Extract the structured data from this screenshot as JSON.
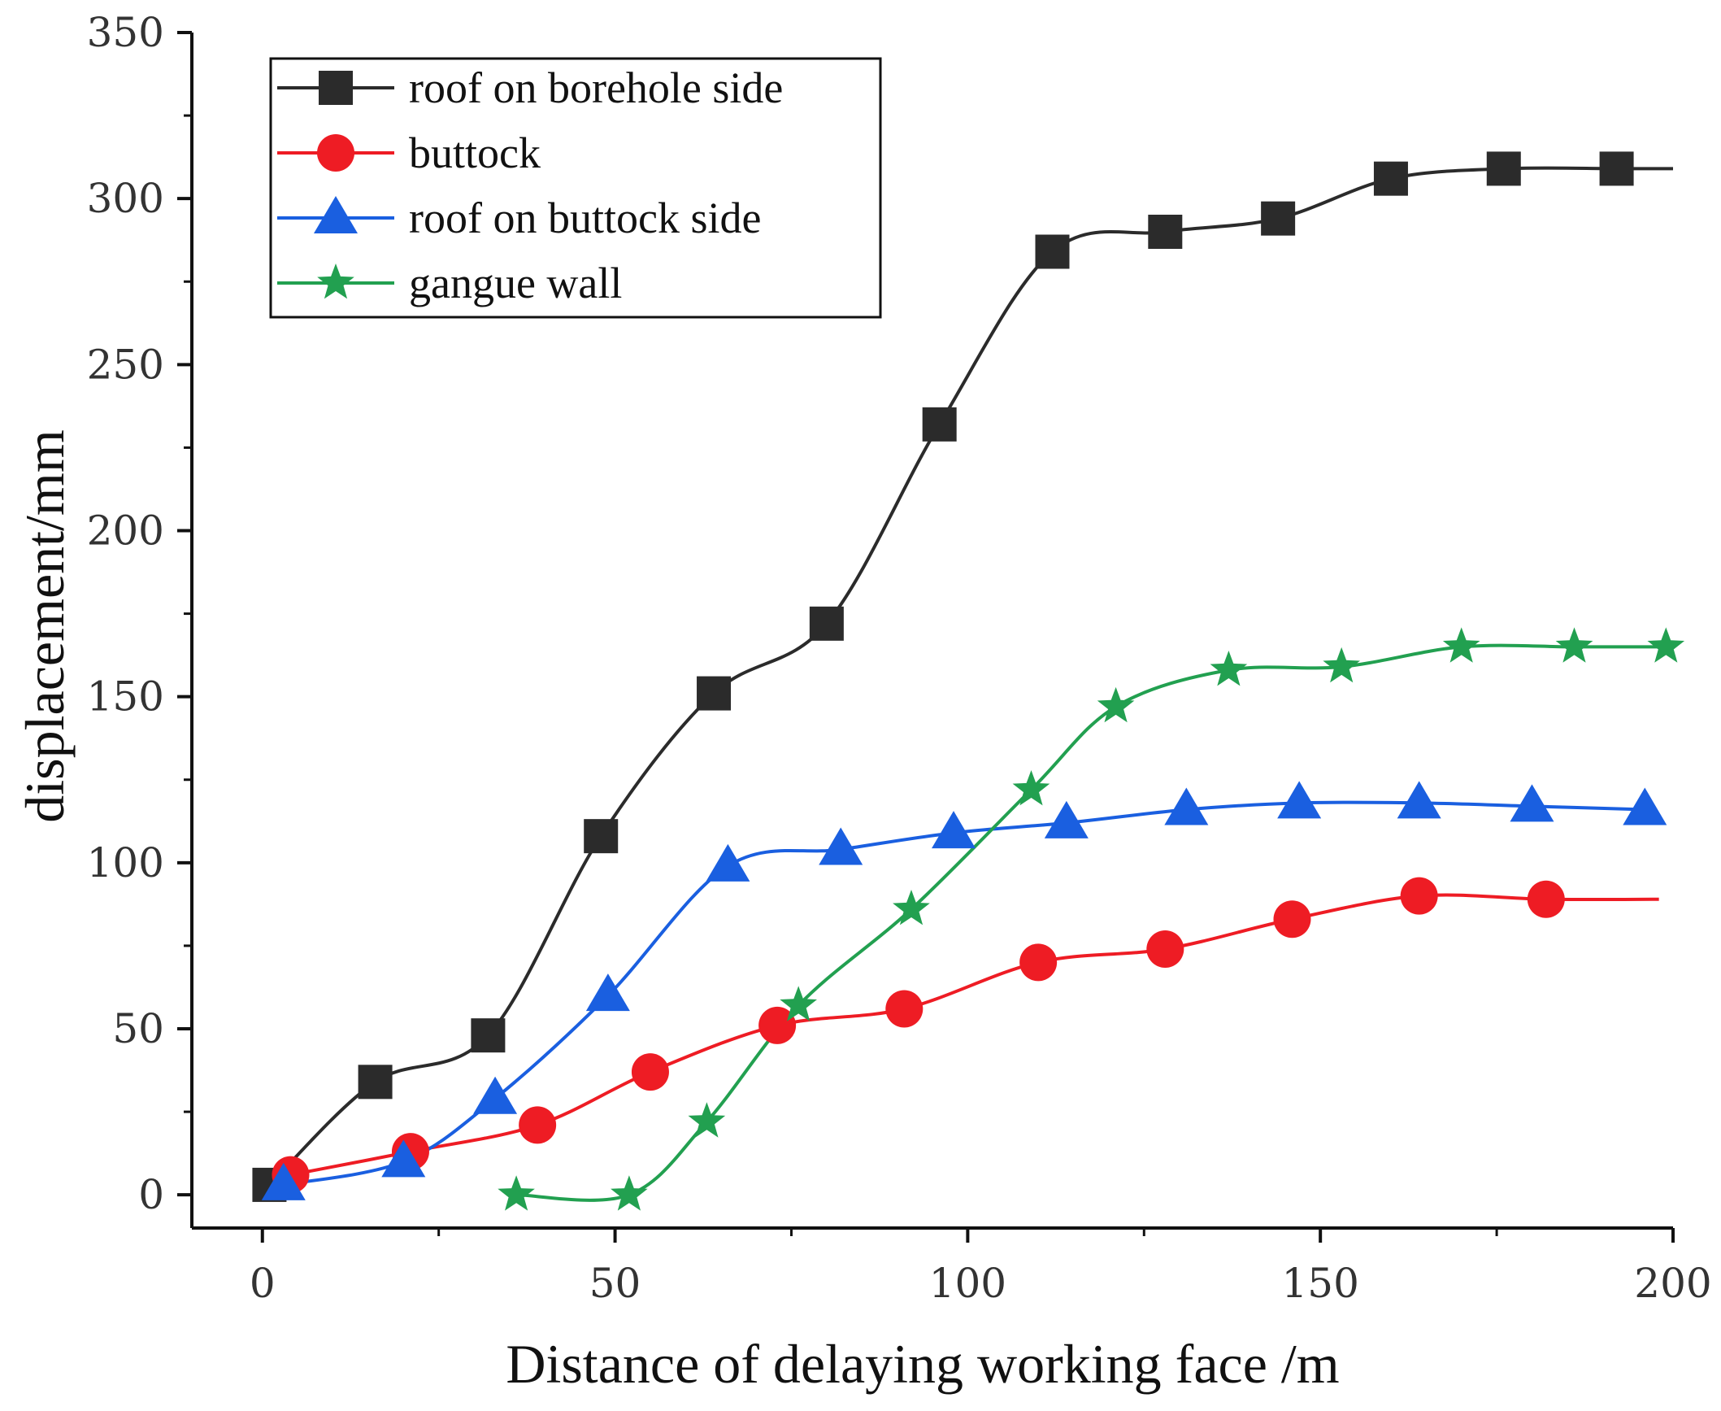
{
  "chart_data": {
    "type": "line",
    "title": "",
    "xlabel": "Distance of delaying working face /m",
    "ylabel": "displacement/mm",
    "xlim": [
      -10,
      200
    ],
    "ylim": [
      -10,
      350
    ],
    "xticks": [
      0,
      50,
      100,
      150,
      200
    ],
    "yticks": [
      0,
      50,
      100,
      150,
      200,
      250,
      300,
      350
    ],
    "grid": false,
    "legend_position": "top-left",
    "series": [
      {
        "name": "roof on borehole side",
        "color": "#2b2b2b",
        "marker": "square",
        "x": [
          1,
          16,
          32,
          48,
          64,
          80,
          96,
          112,
          128,
          144,
          160,
          176,
          192
        ],
        "y": [
          3,
          34,
          48,
          108,
          151,
          172,
          232,
          284,
          290,
          294,
          306,
          309,
          309
        ],
        "line_end": [
          200,
          309
        ]
      },
      {
        "name": "buttock",
        "color": "#ee1c24",
        "marker": "circle",
        "x": [
          4,
          21,
          39,
          55,
          73,
          91,
          110,
          128,
          146,
          164,
          182
        ],
        "y": [
          6,
          13,
          21,
          37,
          51,
          56,
          70,
          74,
          83,
          90,
          89
        ],
        "line_end": [
          198,
          89
        ]
      },
      {
        "name": "roof on buttock side",
        "color": "#1a5fe0",
        "marker": "triangle",
        "x": [
          3,
          20,
          33,
          49,
          66,
          82,
          98,
          114,
          131,
          147,
          164,
          180,
          196
        ],
        "y": [
          3,
          10,
          29,
          60,
          99,
          104,
          109,
          112,
          116,
          118,
          118,
          117,
          116
        ],
        "line_end": [
          196,
          116
        ]
      },
      {
        "name": "gangue wall",
        "color": "#22a050",
        "marker": "star",
        "x": [
          36,
          52,
          63,
          76,
          92,
          109,
          121,
          137,
          153,
          170,
          186,
          199
        ],
        "y": [
          0,
          0,
          22,
          57,
          86,
          122,
          147,
          158,
          159,
          165,
          165,
          165
        ],
        "line_end": [
          199,
          165
        ]
      }
    ]
  }
}
